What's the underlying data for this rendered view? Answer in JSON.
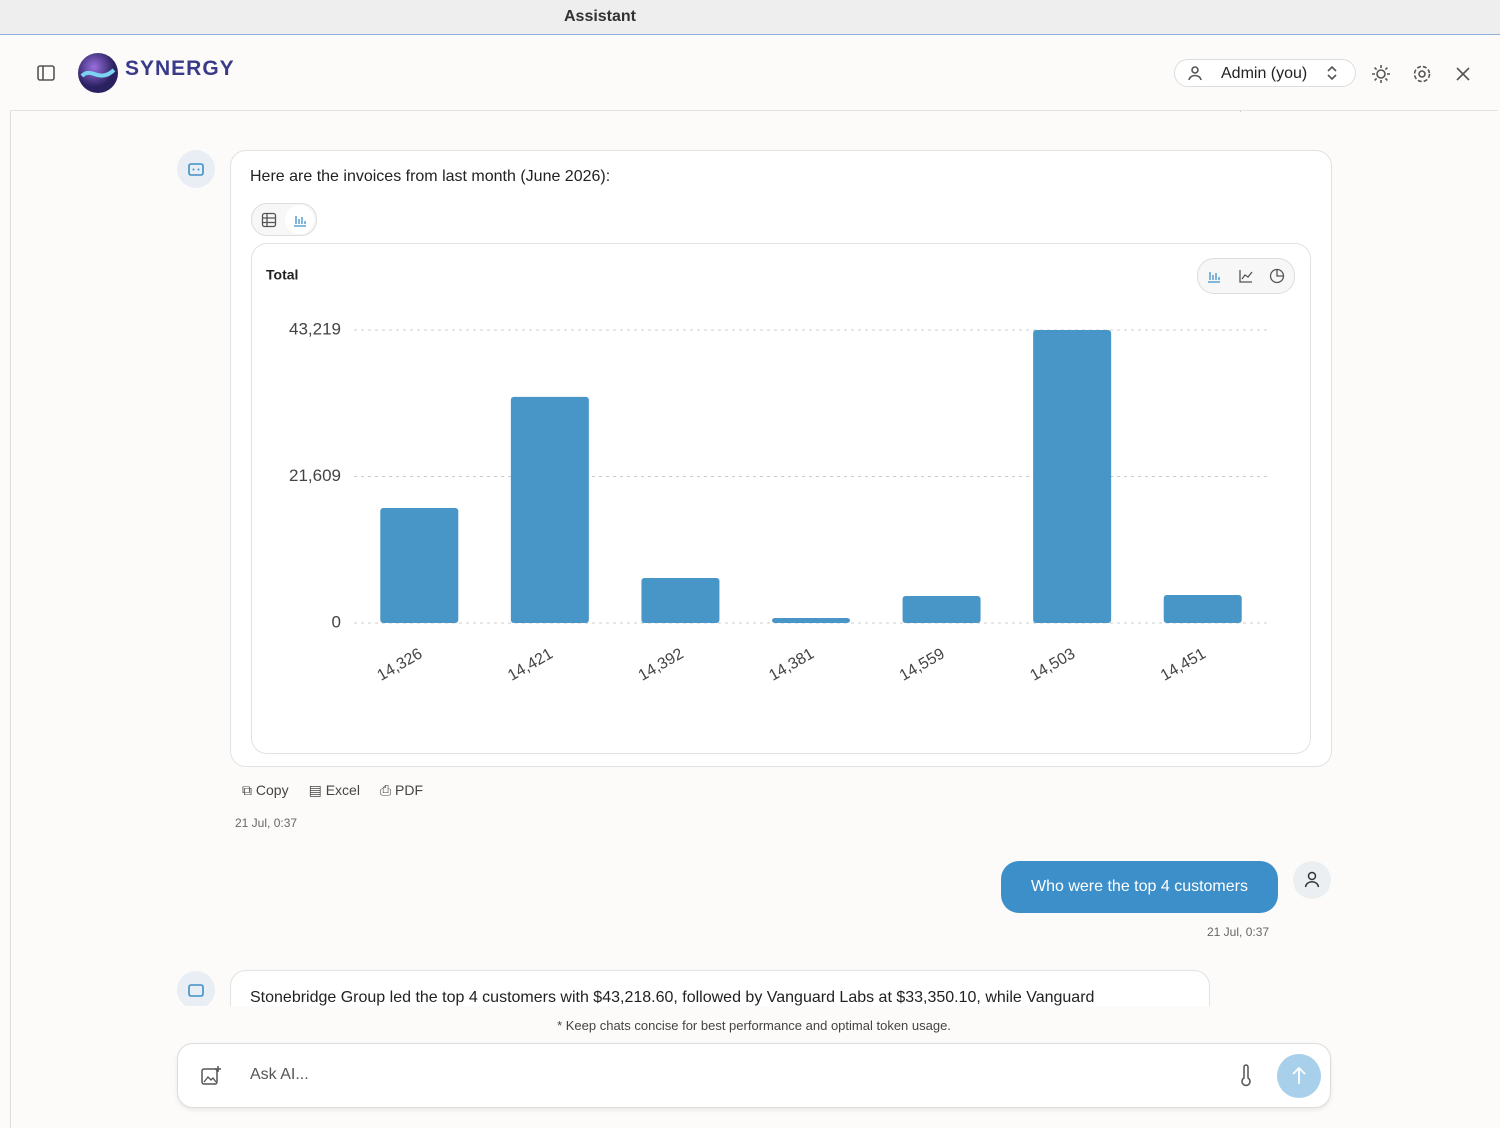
{
  "window_title": "Assistant",
  "header": {
    "brand": "SYNERGY",
    "user": "Admin (you)"
  },
  "earlier_timestamp": "21 Jul, 0:37",
  "messages": [
    {
      "role": "assistant",
      "text": "Here are the invoices from last month (June 2026):",
      "actions": [
        "Copy",
        "Excel",
        "PDF"
      ],
      "timestamp": "21 Jul, 0:37"
    },
    {
      "role": "user",
      "text": "Who were the top 4 customers",
      "timestamp": "21 Jul, 0:37"
    },
    {
      "role": "assistant",
      "text": "Stonebridge Group led the top 4 customers with $43,218.60, followed by Vanguard Labs at $33,350.10, while Vanguard"
    }
  ],
  "chart_data": {
    "type": "bar",
    "title": "Total",
    "categories": [
      "14,326",
      "14,421",
      "14,392",
      "14,381",
      "14,559",
      "14,503",
      "14,451"
    ],
    "values": [
      16960,
      33350.1,
      6640,
      740,
      3980,
      43218.6,
      4130
    ],
    "color": "#4896c8",
    "ylim": [
      0,
      43219
    ],
    "yticks": [
      0,
      {
        "value": 21609,
        "label": "21,609"
      },
      {
        "value": 43219,
        "label": "43,219"
      }
    ],
    "grid": true
  },
  "footer": {
    "note": "* Keep chats concise for best performance and optimal token usage.",
    "placeholder": "Ask AI..."
  }
}
